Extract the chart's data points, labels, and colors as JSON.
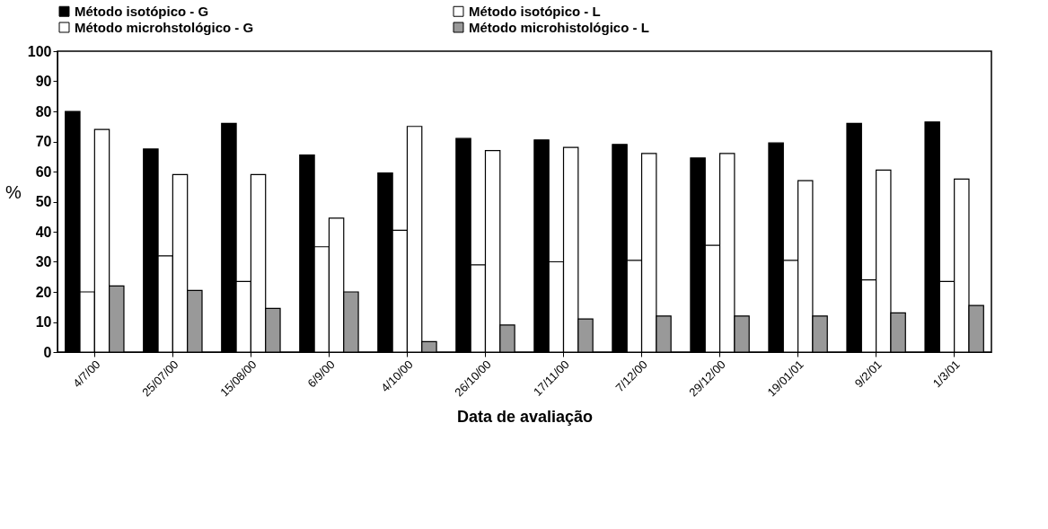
{
  "chart_data": {
    "type": "bar",
    "xlabel": "Data de avaliação",
    "ylabel": "%",
    "categories": [
      "4/7/00",
      "25/07/00",
      "15/08/00",
      "6/9/00",
      "4/10/00",
      "26/10/00",
      "17/11/00",
      "7/12/00",
      "29/12/00",
      "19/01/01",
      "9/2/01",
      "1/3/01"
    ],
    "series": [
      {
        "name": "Método isotópico - G",
        "color": "#000000",
        "values": [
          80,
          67.5,
          76,
          65.5,
          59.5,
          71,
          70.5,
          69,
          64.5,
          69.5,
          76,
          76.5
        ]
      },
      {
        "name": "Método isotópico - L",
        "color": "#ffffff",
        "values": [
          20,
          32,
          23.5,
          35,
          40.5,
          29,
          30,
          30.5,
          35.5,
          30.5,
          24,
          23.5
        ]
      },
      {
        "name": "Método microhstológico - G",
        "color": "#ffffff",
        "values": [
          74,
          59,
          59,
          44.5,
          75,
          67,
          68,
          66,
          66,
          57,
          60.5,
          57.5
        ]
      },
      {
        "name": "Método microhistológico - L",
        "color": "#999999",
        "values": [
          22,
          20.5,
          14.5,
          20,
          3.5,
          9,
          11,
          12,
          12,
          12,
          13,
          15.5
        ]
      }
    ],
    "ylim": [
      0,
      100
    ],
    "yticks": [
      0,
      10,
      20,
      30,
      40,
      50,
      60,
      70,
      80,
      90,
      100
    ],
    "grid": false,
    "legend": "top"
  }
}
